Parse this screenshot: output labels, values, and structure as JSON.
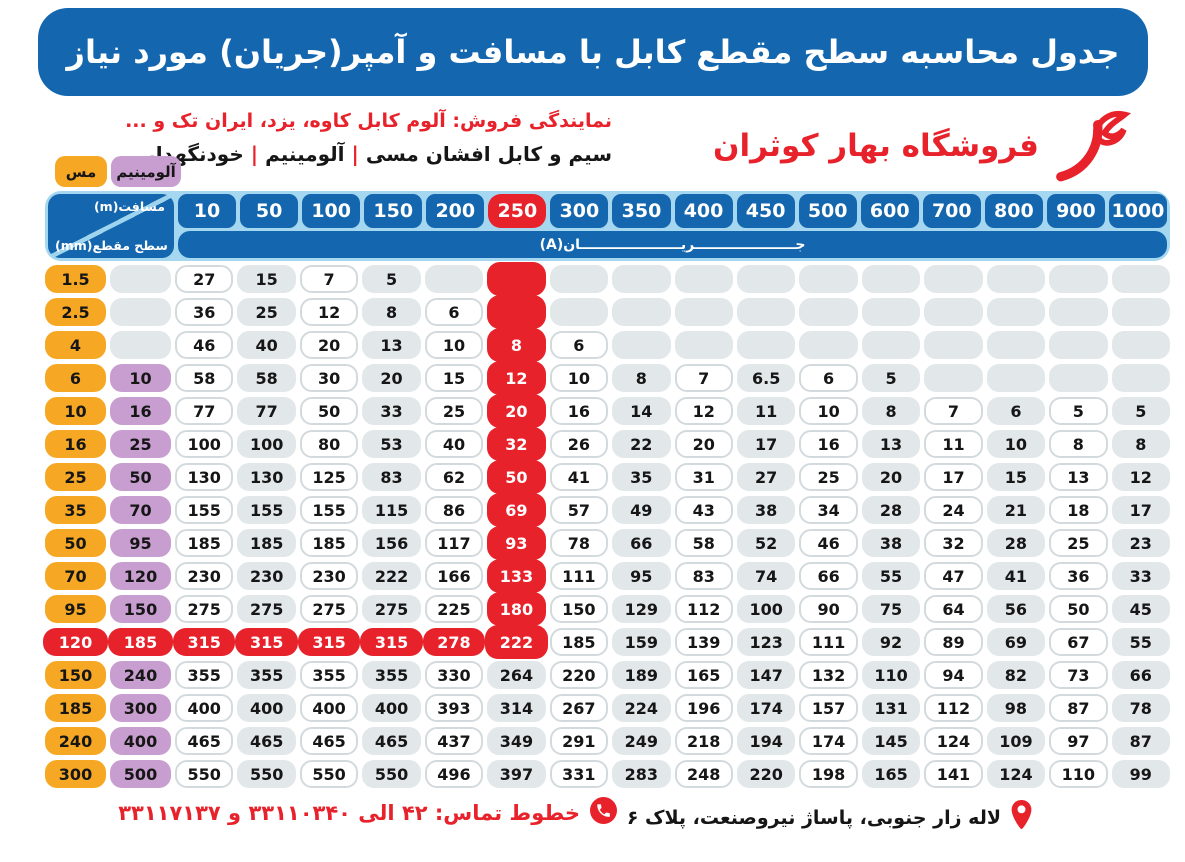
{
  "header": {
    "title": "جدول محاسبه سطح مقطع کابل با مسافت و آمپر(جریان) مورد نیاز",
    "dealer_line": "نمایندگی فروش: آلوم کابل کاوه، یزد، ایران تک و ...",
    "products": {
      "items": [
        "سیم و کابل افشان مسی",
        "آلومینیم",
        "خودنگهدار"
      ],
      "separator": "|"
    },
    "logo_text": "فروشگاه بهار کوثران"
  },
  "legend": {
    "copper": "مس",
    "aluminum": "آلومینیم"
  },
  "table": {
    "corner": {
      "top": "مسافت(m)",
      "bottom": "سطح مقطع(mm)"
    },
    "current_label": "جـــــــــــــــــــــریـــــــــــــــــــــان(A)",
    "columns": [
      "10",
      "50",
      "100",
      "150",
      "200",
      "250",
      "300",
      "350",
      "400",
      "450",
      "500",
      "600",
      "700",
      "800",
      "900",
      "1000"
    ],
    "highlight_column": "250",
    "rows": [
      {
        "copper": "1.5",
        "aluminum": "",
        "hot": true,
        "values": [
          "27",
          "15",
          "7",
          "5",
          "",
          "",
          "",
          "",
          "",
          "",
          "",
          "",
          "",
          "",
          "",
          ""
        ]
      },
      {
        "copper": "2.5",
        "aluminum": "",
        "hot": true,
        "values": [
          "36",
          "25",
          "12",
          "8",
          "6",
          "",
          "",
          "",
          "",
          "",
          "",
          "",
          "",
          "",
          "",
          ""
        ]
      },
      {
        "copper": "4",
        "aluminum": "",
        "hot": true,
        "values": [
          "46",
          "40",
          "20",
          "13",
          "10",
          "8",
          "6",
          "",
          "",
          "",
          "",
          "",
          "",
          "",
          "",
          ""
        ]
      },
      {
        "copper": "6",
        "aluminum": "10",
        "hot": true,
        "values": [
          "58",
          "58",
          "30",
          "20",
          "15",
          "12",
          "10",
          "8",
          "7",
          "6.5",
          "6",
          "5",
          "",
          "",
          "",
          ""
        ]
      },
      {
        "copper": "10",
        "aluminum": "16",
        "hot": true,
        "values": [
          "77",
          "77",
          "50",
          "33",
          "25",
          "20",
          "16",
          "14",
          "12",
          "11",
          "10",
          "8",
          "7",
          "6",
          "5",
          "5"
        ]
      },
      {
        "copper": "16",
        "aluminum": "25",
        "hot": true,
        "values": [
          "100",
          "100",
          "80",
          "53",
          "40",
          "32",
          "26",
          "22",
          "20",
          "17",
          "16",
          "13",
          "11",
          "10",
          "8",
          "8"
        ]
      },
      {
        "copper": "25",
        "aluminum": "50",
        "hot": true,
        "values": [
          "130",
          "130",
          "125",
          "83",
          "62",
          "50",
          "41",
          "35",
          "31",
          "27",
          "25",
          "20",
          "17",
          "15",
          "13",
          "12"
        ]
      },
      {
        "copper": "35",
        "aluminum": "70",
        "hot": true,
        "values": [
          "155",
          "155",
          "155",
          "115",
          "86",
          "69",
          "57",
          "49",
          "43",
          "38",
          "34",
          "28",
          "24",
          "21",
          "18",
          "17"
        ]
      },
      {
        "copper": "50",
        "aluminum": "95",
        "hot": true,
        "values": [
          "185",
          "185",
          "185",
          "156",
          "117",
          "93",
          "78",
          "66",
          "58",
          "52",
          "46",
          "38",
          "32",
          "28",
          "25",
          "23"
        ]
      },
      {
        "copper": "70",
        "aluminum": "120",
        "hot": true,
        "values": [
          "230",
          "230",
          "230",
          "222",
          "166",
          "133",
          "111",
          "95",
          "83",
          "74",
          "66",
          "55",
          "47",
          "41",
          "36",
          "33"
        ]
      },
      {
        "copper": "95",
        "aluminum": "150",
        "hot": true,
        "values": [
          "275",
          "275",
          "275",
          "275",
          "225",
          "180",
          "150",
          "129",
          "112",
          "100",
          "90",
          "75",
          "64",
          "56",
          "50",
          "45"
        ]
      },
      {
        "copper": "120",
        "aluminum": "185",
        "hot": true,
        "hot_row": true,
        "values": [
          "315",
          "315",
          "315",
          "315",
          "278",
          "222",
          "185",
          "159",
          "139",
          "123",
          "111",
          "92",
          "89",
          "69",
          "67",
          "55"
        ]
      },
      {
        "copper": "150",
        "aluminum": "240",
        "values": [
          "355",
          "355",
          "355",
          "355",
          "330",
          "264",
          "220",
          "189",
          "165",
          "147",
          "132",
          "110",
          "94",
          "82",
          "73",
          "66"
        ]
      },
      {
        "copper": "185",
        "aluminum": "300",
        "values": [
          "400",
          "400",
          "400",
          "400",
          "393",
          "314",
          "267",
          "224",
          "196",
          "174",
          "157",
          "131",
          "112",
          "98",
          "87",
          "78"
        ]
      },
      {
        "copper": "240",
        "aluminum": "400",
        "values": [
          "465",
          "465",
          "465",
          "465",
          "437",
          "349",
          "291",
          "249",
          "218",
          "194",
          "174",
          "145",
          "124",
          "109",
          "97",
          "87"
        ]
      },
      {
        "copper": "300",
        "aluminum": "500",
        "values": [
          "550",
          "550",
          "550",
          "550",
          "496",
          "397",
          "331",
          "283",
          "248",
          "220",
          "198",
          "165",
          "141",
          "124",
          "110",
          "99"
        ]
      }
    ]
  },
  "footer": {
    "phone_label": "خطوط تماس: ۴۲ الی ۳۳۱۱۰۳۴۰ و ۳۳۱۱۷۱۳۷",
    "address": "لاله زار جنوبی، پاساژ نیروصنعت، پلاک ۶"
  },
  "colors": {
    "banner_blue": "#1467ae",
    "light_blue": "#a5d8f0",
    "highlight_red": "#e8222b",
    "copper_orange": "#f6a825",
    "aluminum_purple": "#c79ecf",
    "cell_gray": "#e2e8ea"
  }
}
